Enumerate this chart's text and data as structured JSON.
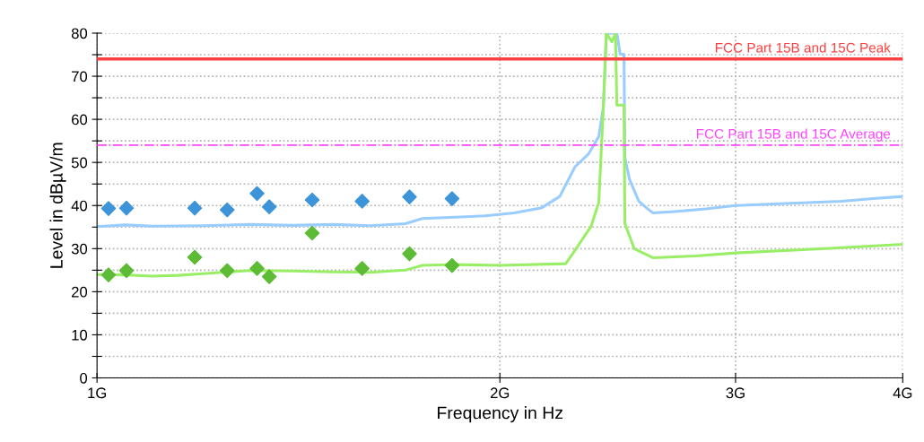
{
  "chart_data": {
    "type": "line",
    "xlabel": "Frequency in Hz",
    "ylabel": "Level in dBµV/m",
    "log": "x",
    "grid": true,
    "xlim": [
      1,
      4
    ],
    "xticks": [
      {
        "value": 1,
        "label": "1G"
      },
      {
        "value": 2,
        "label": "2G"
      },
      {
        "value": 3,
        "label": "3G"
      },
      {
        "value": 4,
        "label": "4G"
      }
    ],
    "ylim": [
      0,
      80
    ],
    "yticks": [
      0,
      {
        "value": 5,
        "label": null
      },
      10,
      {
        "value": 15,
        "label": null
      },
      20,
      {
        "value": 25,
        "label": null
      },
      30,
      {
        "value": 35,
        "label": null
      },
      40,
      {
        "value": 45,
        "label": null
      },
      50,
      {
        "value": 55,
        "label": null
      },
      60,
      {
        "value": 65,
        "label": null
      },
      70,
      {
        "value": 75,
        "label": null
      },
      80
    ],
    "series": [
      {
        "color": "#99ccff",
        "x": [
          1.0,
          1.05,
          1.1,
          1.2,
          1.3,
          1.4,
          1.5,
          1.6,
          1.7,
          1.75,
          1.85,
          1.95,
          2.05,
          2.15,
          2.217,
          2.276,
          2.33,
          2.371,
          2.39,
          2.402,
          2.42,
          2.446,
          2.46,
          2.476,
          2.48,
          2.5,
          2.54,
          2.575,
          2.602,
          2.7,
          2.85,
          3.0,
          3.3,
          3.6,
          3.8,
          4.0
        ],
        "values": [
          35.1,
          35.5,
          35.2,
          35.3,
          35.6,
          35.4,
          35.6,
          35.3,
          35.8,
          37.0,
          37.3,
          37.6,
          38.3,
          39.5,
          42.1,
          49,
          52,
          56,
          63,
          80,
          80,
          80,
          75.1,
          75.1,
          51.1,
          46,
          41,
          39.4,
          38.3,
          38.6,
          39.2,
          40,
          40.5,
          41.0,
          41.6,
          42.1
        ]
      },
      {
        "color": "#99ee66",
        "x": [
          1.0,
          1.05,
          1.1,
          1.15,
          1.2,
          1.3,
          1.4,
          1.5,
          1.6,
          1.7,
          1.75,
          1.85,
          2.0,
          2.24,
          2.276,
          2.34,
          2.371,
          2.39,
          2.402,
          2.425,
          2.44,
          2.446,
          2.476,
          2.48,
          2.52,
          2.602,
          2.8,
          3.0,
          3.5,
          4.0
        ],
        "values": [
          24.0,
          23.9,
          23.6,
          23.8,
          24.2,
          24.9,
          24.8,
          24.6,
          24.5,
          25.0,
          26.1,
          26.3,
          26.1,
          26.5,
          29.6,
          35.2,
          40.7,
          63,
          80,
          78,
          80,
          63.3,
          63.3,
          35.8,
          30,
          27.9,
          28.3,
          29,
          30,
          31
        ]
      },
      {
        "type": "scatter",
        "color": "#3d94d8",
        "marker": "diamond",
        "x": [
          1.02,
          1.052,
          1.183,
          1.251,
          1.317,
          1.345,
          1.448,
          1.578,
          1.712,
          1.842
        ],
        "values": [
          39.3,
          39.4,
          39.4,
          39.0,
          42.8,
          39.7,
          41.3,
          41.0,
          42.0,
          41.6
        ]
      },
      {
        "type": "scatter",
        "color": "#5dbb35",
        "marker": "diamond",
        "x": [
          1.02,
          1.052,
          1.183,
          1.251,
          1.317,
          1.345,
          1.448,
          1.578,
          1.712,
          1.842
        ],
        "values": [
          23.9,
          24.9,
          28.0,
          24.9,
          25.4,
          23.5,
          33.6,
          25.4,
          28.8,
          26.1
        ]
      }
    ],
    "ref_lines": [
      {
        "axis": "y",
        "value": 74,
        "label": "FCC Part 15B and 15C Peak",
        "color": "#ff4040",
        "line_style": "solid"
      },
      {
        "axis": "y",
        "value": 54,
        "label": "FCC Part 15B and 15C Average",
        "color": "#ff44ff",
        "line_style": "dashdot"
      }
    ]
  }
}
